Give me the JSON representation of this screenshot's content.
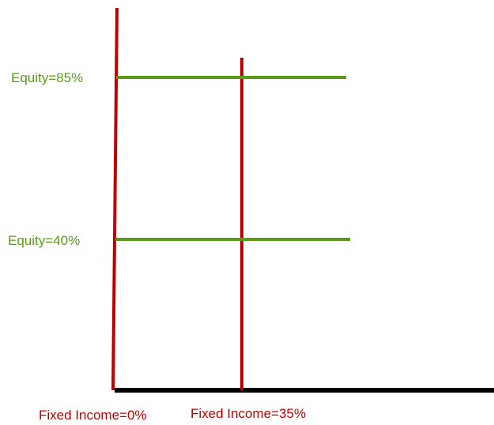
{
  "diagram": {
    "colors": {
      "red": "#c00000",
      "green": "#5a9a1a",
      "black": "#000000",
      "background": "#ffffff"
    },
    "labels": {
      "equity_high": "Equity=85%",
      "equity_low": "Equity=40%",
      "fixed_income_zero": "Fixed Income=0%",
      "fixed_income_35": "Fixed Income=35%"
    }
  }
}
